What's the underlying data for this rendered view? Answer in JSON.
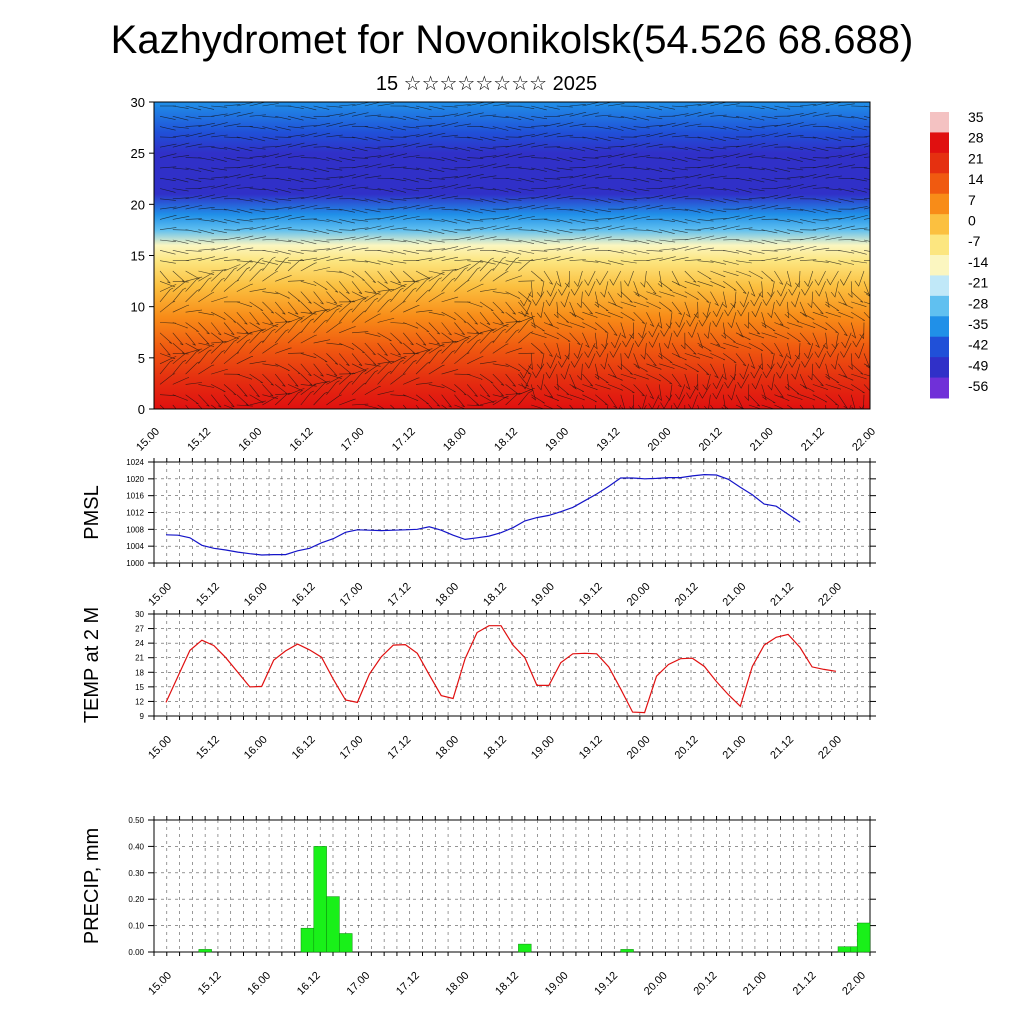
{
  "header": {
    "title": "Kazhydromet for Novonikolsk(54.526 68.688)",
    "subtitle": "15 ☆☆☆☆☆☆☆☆ 2025"
  },
  "colorbar": {
    "labels": [
      "35",
      "28",
      "21",
      "14",
      "7",
      "0",
      "-7",
      "-14",
      "-21",
      "-28",
      "-35",
      "-42",
      "-49",
      "-56"
    ],
    "colors": [
      "#f4c2c2",
      "#e01010",
      "#e53010",
      "#f05a10",
      "#f88c18",
      "#fbc040",
      "#fce680",
      "#fbf6c0",
      "#c0e8f8",
      "#60c0f0",
      "#2090e8",
      "#2050d8",
      "#3030c8",
      "#7030d8"
    ]
  },
  "time_ticks": [
    "15.00",
    "15.12",
    "16.00",
    "16.12",
    "17.00",
    "17.12",
    "18.00",
    "18.12",
    "19.00",
    "19.12",
    "20.00",
    "20.12",
    "21.00",
    "21.12",
    "22.00"
  ],
  "chart_data": [
    {
      "type": "heatmap",
      "name": "vertical temperature and wind cross-section",
      "x": [
        "15.00",
        "15.12",
        "16.00",
        "16.12",
        "17.00",
        "17.12",
        "18.00",
        "18.12",
        "19.00",
        "19.12",
        "20.00",
        "20.12",
        "21.00",
        "21.12",
        "22.00"
      ],
      "ylim": [
        0,
        30
      ],
      "yticks": [
        0,
        5,
        10,
        15,
        20,
        25,
        30
      ],
      "zlim": [
        -56,
        35
      ],
      "layer_temperatures": [
        {
          "height": 0,
          "value": 26
        },
        {
          "height": 3,
          "value": 22
        },
        {
          "height": 6,
          "value": 14
        },
        {
          "height": 9,
          "value": 6
        },
        {
          "height": 12,
          "value": 0
        },
        {
          "height": 14.5,
          "value": -7
        },
        {
          "height": 16,
          "value": -16
        },
        {
          "height": 17.5,
          "value": -28
        },
        {
          "height": 19,
          "value": -38
        },
        {
          "height": 21,
          "value": -46
        },
        {
          "height": 23,
          "value": -52
        },
        {
          "height": 25,
          "value": -50
        },
        {
          "height": 27,
          "value": -44
        },
        {
          "height": 30,
          "value": -38
        }
      ]
    },
    {
      "type": "line",
      "ylabel": "PMSL",
      "ylim": [
        1000,
        1024
      ],
      "yticks": [
        1000,
        1004,
        1008,
        1012,
        1016,
        1020,
        1024
      ],
      "x": [
        0,
        3,
        6,
        9,
        12,
        15,
        18,
        21,
        24,
        27,
        30,
        33,
        36,
        39,
        42,
        45,
        48,
        51,
        54,
        57,
        60,
        63,
        66,
        69,
        72,
        75,
        78,
        81,
        84,
        87,
        90,
        93,
        96,
        99,
        102,
        105,
        108,
        111,
        114,
        117,
        120,
        123,
        126,
        129,
        132,
        135,
        138,
        141,
        144,
        147,
        150,
        153,
        156,
        159,
        162,
        165,
        168
      ],
      "series": [
        {
          "values": [
            1006.7,
            1006.6,
            1006.0,
            1004.2,
            1003.5,
            1003.1,
            1002.6,
            1002.2,
            1001.9,
            1002.0,
            1002.0,
            1002.9,
            1003.5,
            1004.8,
            1005.8,
            1007.3,
            1007.9,
            1007.8,
            1007.7,
            1007.8,
            1007.9,
            1008.0,
            1008.6,
            1007.8,
            1006.6,
            1005.6,
            1006.0,
            1006.4,
            1007.2,
            1008.4,
            1010.0,
            1010.8,
            1011.3,
            1012.2,
            1013.2,
            1014.8,
            1016.4,
            1018.2,
            1020.2,
            1020.2,
            1020.0,
            1020.1,
            1020.3,
            1020.3,
            1020.7,
            1021.0,
            1020.9,
            1019.9,
            1018.0,
            1016.2,
            1014.0,
            1013.5,
            1011.6,
            1009.7,
            null,
            null,
            null
          ]
        }
      ]
    },
    {
      "type": "line",
      "ylabel": "TEMP at 2 M",
      "ylim": [
        9,
        30
      ],
      "yticks": [
        9,
        12,
        15,
        18,
        21,
        24,
        27,
        30
      ],
      "x": [
        0,
        3,
        6,
        9,
        12,
        15,
        18,
        21,
        24,
        27,
        30,
        33,
        36,
        39,
        42,
        45,
        48,
        51,
        54,
        57,
        60,
        63,
        66,
        69,
        72,
        75,
        78,
        81,
        84,
        87,
        90,
        93,
        96,
        99,
        102,
        105,
        108,
        111,
        114,
        117,
        120,
        123,
        126,
        129,
        132,
        135,
        138,
        141,
        144,
        147,
        150,
        153,
        156,
        159,
        162,
        165,
        168
      ],
      "series": [
        {
          "values": [
            11.8,
            17.2,
            22.5,
            24.6,
            23.5,
            21.0,
            18.0,
            15.0,
            15.1,
            20.5,
            22.4,
            23.8,
            22.6,
            21.1,
            16.5,
            12.3,
            11.8,
            17.6,
            21.2,
            23.6,
            23.7,
            21.9,
            17.5,
            13.2,
            12.6,
            20.8,
            26.2,
            27.6,
            27.6,
            23.6,
            21.0,
            15.3,
            15.3,
            20.0,
            21.8,
            21.9,
            21.8,
            19.1,
            14.6,
            9.8,
            9.7,
            17.2,
            19.6,
            20.8,
            20.9,
            19.2,
            16.1,
            13.4,
            11.0,
            19.2,
            23.6,
            25.2,
            25.8,
            23.1,
            19.1,
            18.6,
            18.2
          ]
        }
      ]
    },
    {
      "type": "bar",
      "ylabel": "PRECIP, mm",
      "ylim": [
        0,
        0.5
      ],
      "yticks": [
        "0.00",
        "0.10",
        "0.20",
        "0.30",
        "0.40",
        "0.50"
      ],
      "x": [
        12,
        36,
        39,
        42,
        45,
        87,
        111,
        162,
        165,
        168
      ],
      "values": [
        0.01,
        0.09,
        0.4,
        0.21,
        0.07,
        0.03,
        0.01,
        0.02,
        0.02,
        0.11
      ]
    }
  ]
}
